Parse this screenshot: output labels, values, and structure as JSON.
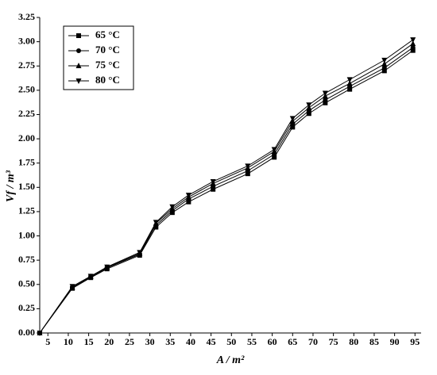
{
  "chart_data": {
    "type": "line",
    "x_label": "A / m²",
    "y_label": "Vf / m³",
    "x": [
      3,
      11,
      15.5,
      19.5,
      27.5,
      31.5,
      35.5,
      39.5,
      45.5,
      54,
      60.5,
      65,
      69,
      73,
      79,
      87.5,
      94.5
    ],
    "series": [
      {
        "name": "65 °C",
        "color": "#000000",
        "marker": "square",
        "values": [
          0,
          0.46,
          0.57,
          0.66,
          0.8,
          1.09,
          1.24,
          1.35,
          1.48,
          1.64,
          1.81,
          2.12,
          2.26,
          2.37,
          2.51,
          2.7,
          2.91
        ]
      },
      {
        "name": "70 °C",
        "color": "#000000",
        "marker": "circle",
        "values": [
          0,
          0.47,
          0.575,
          0.67,
          0.81,
          1.11,
          1.26,
          1.38,
          1.51,
          1.67,
          1.84,
          2.15,
          2.29,
          2.4,
          2.54,
          2.73,
          2.94
        ]
      },
      {
        "name": "75 °C",
        "color": "#000000",
        "marker": "triangle-up",
        "values": [
          0,
          0.47,
          0.58,
          0.675,
          0.82,
          1.13,
          1.28,
          1.4,
          1.54,
          1.7,
          1.87,
          2.18,
          2.32,
          2.44,
          2.57,
          2.77,
          2.98
        ]
      },
      {
        "name": "80 °C",
        "color": "#000000",
        "marker": "triangle-down",
        "values": [
          0,
          0.48,
          0.585,
          0.68,
          0.83,
          1.14,
          1.3,
          1.42,
          1.56,
          1.72,
          1.89,
          2.21,
          2.35,
          2.47,
          2.61,
          2.81,
          3.02
        ]
      }
    ],
    "xlim": [
      3,
      96.5
    ],
    "ylim": [
      0,
      3.25
    ],
    "xticks": [
      5,
      10,
      15,
      20,
      25,
      30,
      35,
      40,
      45,
      50,
      55,
      60,
      65,
      70,
      75,
      80,
      85,
      90,
      95
    ],
    "yticks": [
      {
        "value": 0,
        "label": "0.00"
      },
      {
        "value": 0.25,
        "label": "0.25"
      },
      {
        "value": 0.5,
        "label": "0.50"
      },
      {
        "value": 0.75,
        "label": "0.75"
      },
      {
        "value": 1,
        "label": "1.00"
      },
      {
        "value": 1.25,
        "label": "1.25"
      },
      {
        "value": 1.5,
        "label": "1.50"
      },
      {
        "value": 1.75,
        "label": "1.75"
      },
      {
        "value": 2,
        "label": "2.00"
      },
      {
        "value": 2.25,
        "label": "2.25"
      },
      {
        "value": 2.5,
        "label": "2.50"
      },
      {
        "value": 2.75,
        "label": "2.75"
      },
      {
        "value": 3,
        "label": "3.00"
      },
      {
        "value": 3.25,
        "label": "3.25"
      }
    ],
    "legend": "upper-left"
  }
}
